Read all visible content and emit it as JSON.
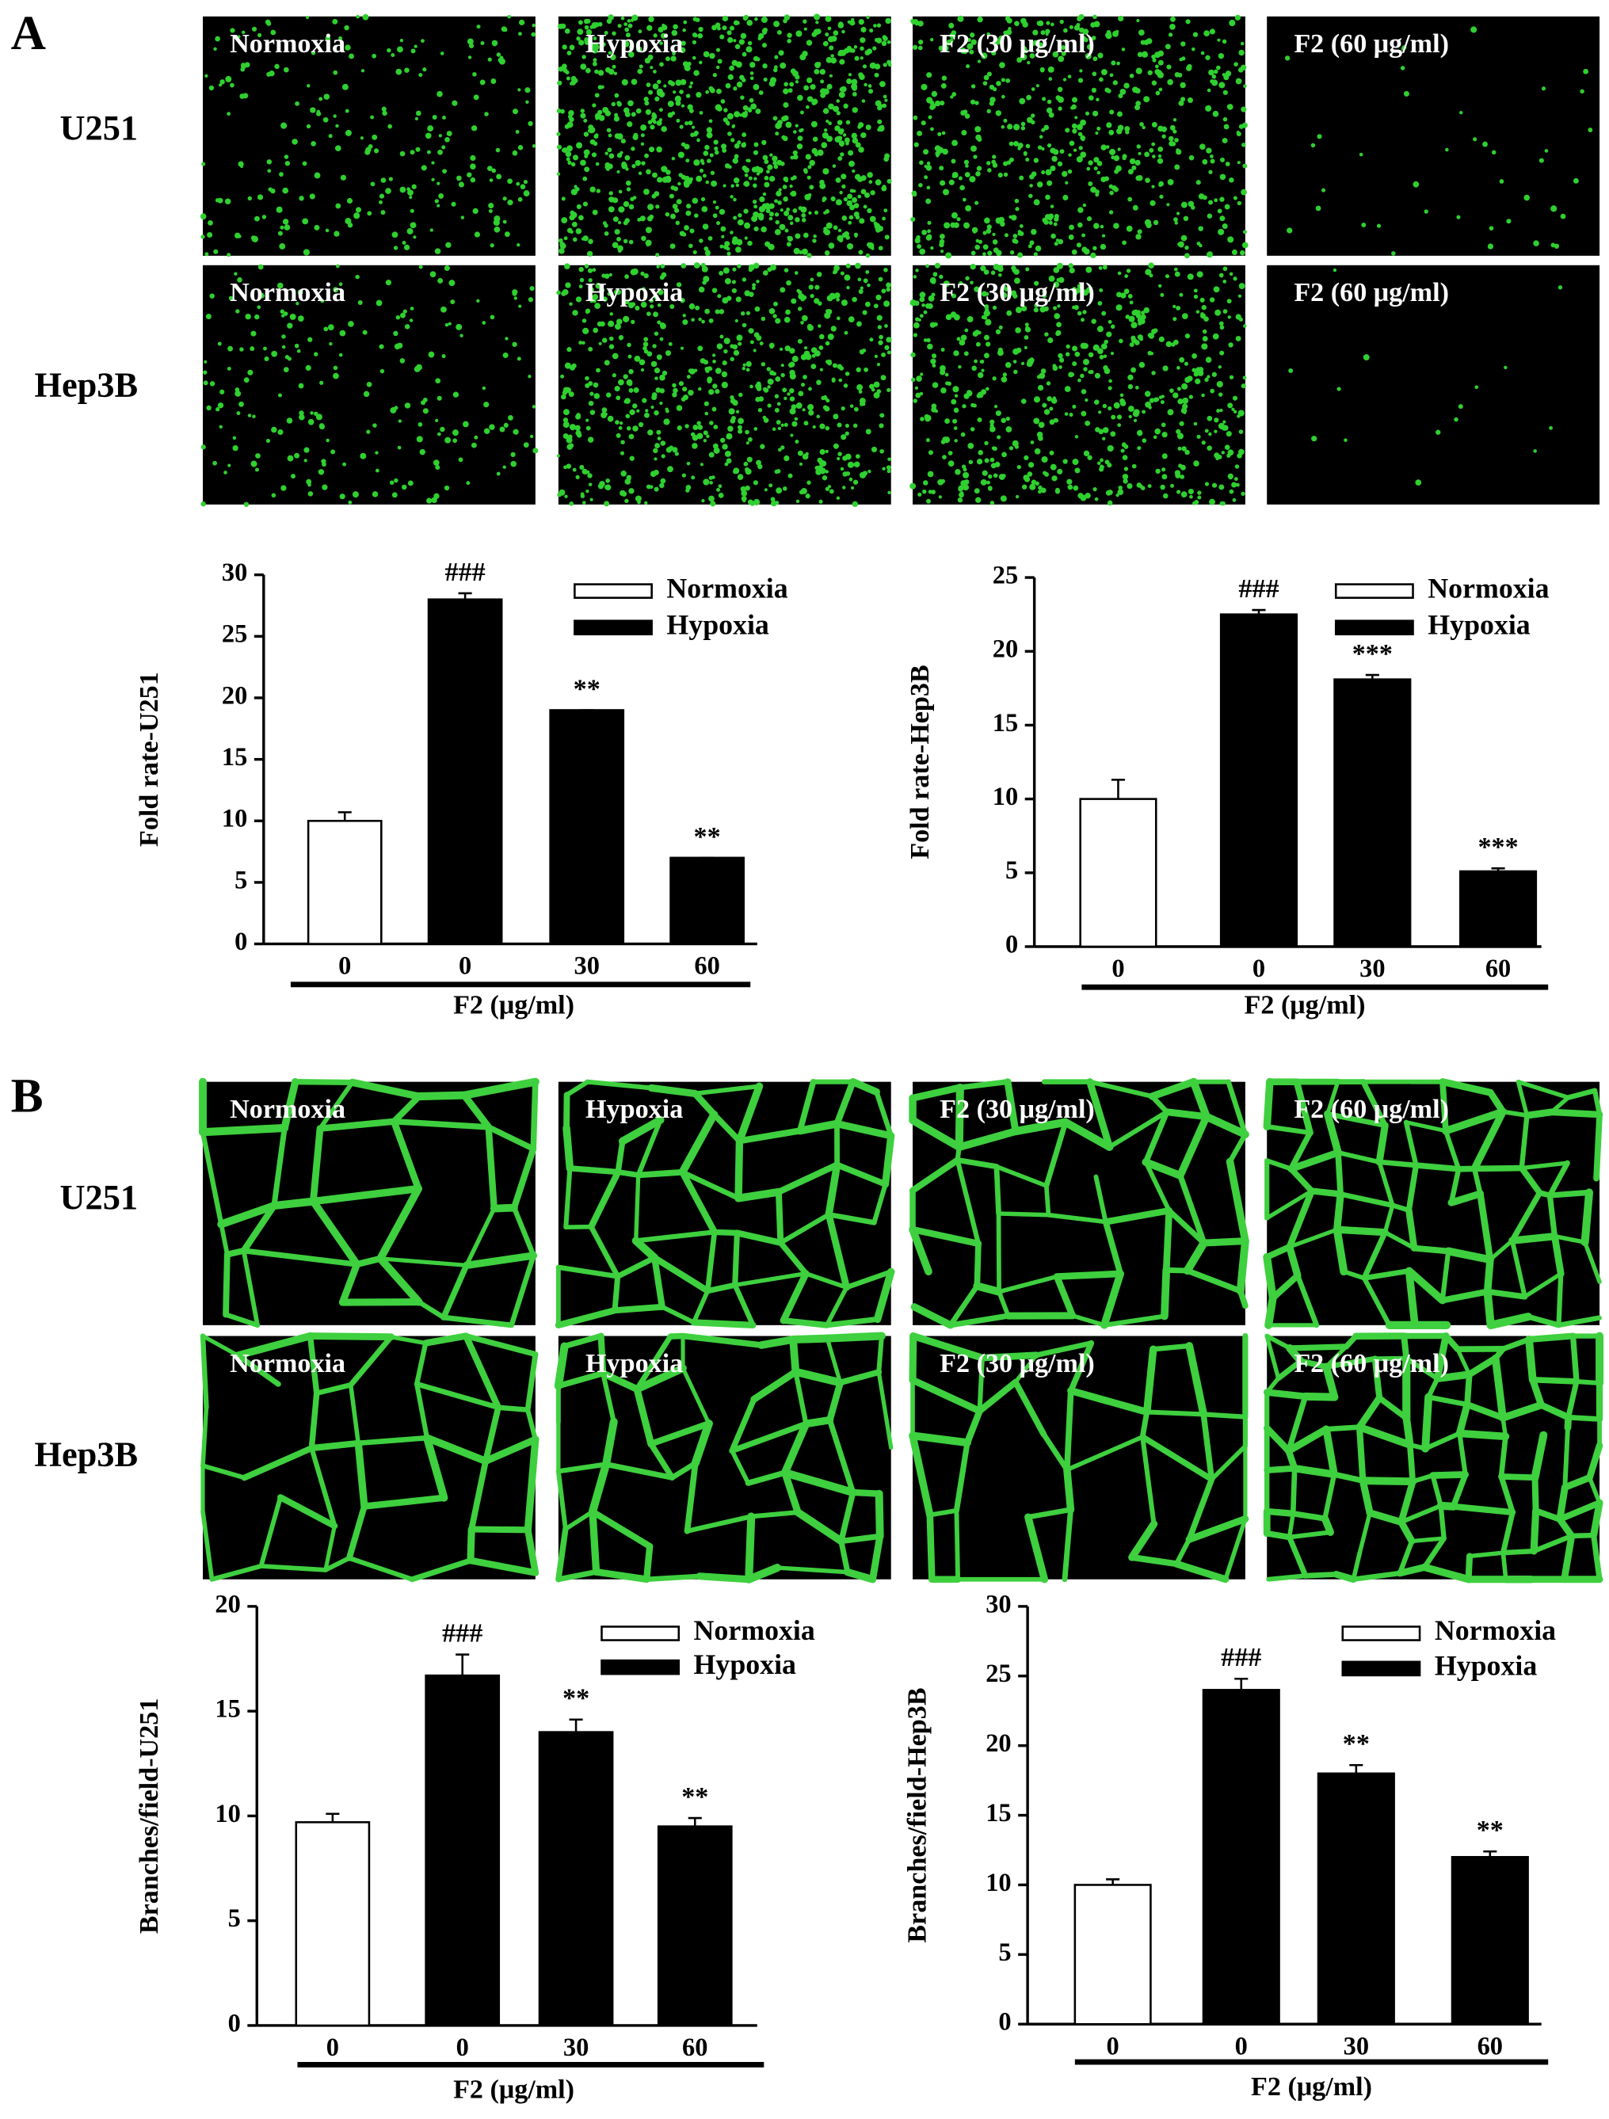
{
  "panels": [
    {
      "label": "A",
      "rows": [
        "U251",
        "Hep3B"
      ],
      "tiles": [
        [
          "Normoxia",
          "Hypoxia",
          "F2 (30 μg/ml)",
          "F2 (60 μg/ml)"
        ],
        [
          "Normoxia",
          "Hypoxia",
          "F2 (30 μg/ml)",
          "F2 (60 μg/ml)"
        ]
      ]
    },
    {
      "label": "B",
      "rows": [
        "U251",
        "Hep3B"
      ],
      "tiles": [
        [
          "Normoxia",
          "Hypoxia",
          "F2 (30 μg/ml)",
          "F2 (60 μg/ml)"
        ],
        [
          "Normoxia",
          "Hypoxia",
          "F2 (30 μg/ml)",
          "F2 (60 μg/ml)"
        ]
      ]
    }
  ],
  "chart_data": [
    {
      "type": "bar",
      "ylabel": "Fold rate-U251",
      "xlabel": "F2 (μg/ml)",
      "categories": [
        "0",
        "0",
        "30",
        "60"
      ],
      "series": [
        {
          "name": "Normoxia",
          "color": "#ffffff",
          "values": [
            10,
            null,
            null,
            null
          ],
          "errors": [
            0.7,
            null,
            null,
            null
          ]
        },
        {
          "name": "Hypoxia",
          "color": "#000000",
          "values": [
            null,
            28,
            19,
            7
          ],
          "errors": [
            null,
            0.5,
            0,
            0
          ]
        }
      ],
      "annotations": [
        null,
        "###",
        "**",
        "**"
      ],
      "ylim": [
        0,
        30
      ],
      "yticks": [
        0,
        5,
        10,
        15,
        20,
        25,
        30
      ]
    },
    {
      "type": "bar",
      "ylabel": "Fold rate-Hep3B",
      "xlabel": "F2 (μg/ml)",
      "categories": [
        "0",
        "0",
        "30",
        "60"
      ],
      "series": [
        {
          "name": "Normoxia",
          "color": "#ffffff",
          "values": [
            10,
            null,
            null,
            null
          ],
          "errors": [
            1.3,
            null,
            null,
            null
          ]
        },
        {
          "name": "Hypoxia",
          "color": "#000000",
          "values": [
            null,
            22.5,
            18.1,
            5.1
          ],
          "errors": [
            null,
            0.3,
            0.3,
            0.2
          ]
        }
      ],
      "annotations": [
        null,
        "###",
        "***",
        "***"
      ],
      "ylim": [
        0,
        25
      ],
      "yticks": [
        0,
        5,
        10,
        15,
        20,
        25
      ]
    },
    {
      "type": "bar",
      "ylabel": "Branches/field-U251",
      "xlabel": "F2 (μg/ml)",
      "categories": [
        "0",
        "0",
        "30",
        "60"
      ],
      "series": [
        {
          "name": "Normoxia",
          "color": "#ffffff",
          "values": [
            9.7,
            null,
            null,
            null
          ],
          "errors": [
            0.4,
            null,
            null,
            null
          ]
        },
        {
          "name": "Hypoxia",
          "color": "#000000",
          "values": [
            null,
            16.7,
            14,
            9.5
          ],
          "errors": [
            null,
            1.0,
            0.6,
            0.4
          ]
        }
      ],
      "annotations": [
        null,
        "###",
        "**",
        "**"
      ],
      "ylim": [
        0,
        20
      ],
      "yticks": [
        0,
        5,
        10,
        15,
        20
      ]
    },
    {
      "type": "bar",
      "ylabel": "Branches/field-Hep3B",
      "xlabel": "F2 (μg/ml)",
      "categories": [
        "0",
        "0",
        "30",
        "60"
      ],
      "series": [
        {
          "name": "Normoxia",
          "color": "#ffffff",
          "values": [
            10,
            null,
            null,
            null
          ],
          "errors": [
            0.4,
            null,
            null,
            null
          ]
        },
        {
          "name": "Hypoxia",
          "color": "#000000",
          "values": [
            null,
            24,
            18,
            12
          ],
          "errors": [
            null,
            0.8,
            0.6,
            0.4
          ]
        }
      ],
      "annotations": [
        null,
        "###",
        "**",
        "**"
      ],
      "ylim": [
        0,
        30
      ],
      "yticks": [
        0,
        5,
        10,
        15,
        20,
        25,
        30
      ]
    }
  ]
}
